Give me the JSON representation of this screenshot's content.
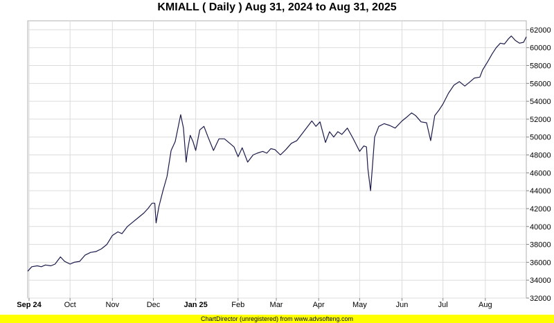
{
  "chart_data": {
    "type": "line",
    "title": "KMIALL ( Daily ) Aug 31, 2024 to Aug 31, 2025",
    "xlabel": "",
    "ylabel": "",
    "ylim": [
      32000,
      63000
    ],
    "y_ticks": [
      32000,
      34000,
      36000,
      38000,
      40000,
      42000,
      44000,
      46000,
      48000,
      50000,
      52000,
      54000,
      56000,
      58000,
      60000,
      62000
    ],
    "y_tick_labels": [
      "32000",
      "34000",
      "36000",
      "38000",
      "40000",
      "42000",
      "44000",
      "46000",
      "48000",
      "50000",
      "52000",
      "54000",
      "56000",
      "58000",
      "60000",
      "62000"
    ],
    "x_range": [
      "2024-08-31",
      "2025-08-31"
    ],
    "x_ticks": [
      {
        "date": "2024-09-01",
        "label": "Sep 24",
        "bold": true
      },
      {
        "date": "2024-10-01",
        "label": "Oct",
        "bold": false
      },
      {
        "date": "2024-11-01",
        "label": "Nov",
        "bold": false
      },
      {
        "date": "2024-12-01",
        "label": "Dec",
        "bold": false
      },
      {
        "date": "2025-01-01",
        "label": "Jan 25",
        "bold": true
      },
      {
        "date": "2025-02-01",
        "label": "Feb",
        "bold": false
      },
      {
        "date": "2025-03-01",
        "label": "Mar",
        "bold": false
      },
      {
        "date": "2025-04-01",
        "label": "Apr",
        "bold": false
      },
      {
        "date": "2025-05-01",
        "label": "May",
        "bold": false
      },
      {
        "date": "2025-06-01",
        "label": "Jun",
        "bold": false
      },
      {
        "date": "2025-07-01",
        "label": "Jul",
        "bold": false
      },
      {
        "date": "2025-08-01",
        "label": "Aug",
        "bold": false
      }
    ],
    "grid": true,
    "series": [
      {
        "line_color": "#1a1a4a",
        "points": [
          [
            "2024-08-31",
            35000
          ],
          [
            "2024-09-03",
            35500
          ],
          [
            "2024-09-07",
            35600
          ],
          [
            "2024-09-10",
            35500
          ],
          [
            "2024-09-13",
            35700
          ],
          [
            "2024-09-17",
            35600
          ],
          [
            "2024-09-20",
            35800
          ],
          [
            "2024-09-24",
            36600
          ],
          [
            "2024-09-27",
            36100
          ],
          [
            "2024-10-01",
            35800
          ],
          [
            "2024-10-04",
            36000
          ],
          [
            "2024-10-08",
            36100
          ],
          [
            "2024-10-12",
            36800
          ],
          [
            "2024-10-16",
            37100
          ],
          [
            "2024-10-20",
            37200
          ],
          [
            "2024-10-24",
            37500
          ],
          [
            "2024-10-28",
            38000
          ],
          [
            "2024-11-01",
            39000
          ],
          [
            "2024-11-05",
            39400
          ],
          [
            "2024-11-08",
            39200
          ],
          [
            "2024-11-12",
            40000
          ],
          [
            "2024-11-16",
            40500
          ],
          [
            "2024-11-20",
            41000
          ],
          [
            "2024-11-24",
            41500
          ],
          [
            "2024-11-27",
            42000
          ],
          [
            "2024-11-30",
            42600
          ],
          [
            "2024-12-02",
            42600
          ],
          [
            "2024-12-03",
            40400
          ],
          [
            "2024-12-05",
            42200
          ],
          [
            "2024-12-08",
            44000
          ],
          [
            "2024-12-11",
            45600
          ],
          [
            "2024-12-14",
            48500
          ],
          [
            "2024-12-17",
            49500
          ],
          [
            "2024-12-19",
            51000
          ],
          [
            "2024-12-21",
            52500
          ],
          [
            "2024-12-23",
            51000
          ],
          [
            "2024-12-25",
            47200
          ],
          [
            "2024-12-26",
            48500
          ],
          [
            "2024-12-28",
            50200
          ],
          [
            "2024-12-30",
            49500
          ],
          [
            "2025-01-01",
            48500
          ],
          [
            "2025-01-04",
            50800
          ],
          [
            "2025-01-07",
            51200
          ],
          [
            "2025-01-10",
            50000
          ],
          [
            "2025-01-14",
            48500
          ],
          [
            "2025-01-18",
            49800
          ],
          [
            "2025-01-22",
            49800
          ],
          [
            "2025-01-26",
            49300
          ],
          [
            "2025-01-29",
            48900
          ],
          [
            "2025-02-01",
            47800
          ],
          [
            "2025-02-04",
            48800
          ],
          [
            "2025-02-08",
            47200
          ],
          [
            "2025-02-12",
            48000
          ],
          [
            "2025-02-15",
            48200
          ],
          [
            "2025-02-19",
            48400
          ],
          [
            "2025-02-22",
            48200
          ],
          [
            "2025-02-25",
            48700
          ],
          [
            "2025-02-28",
            48600
          ],
          [
            "2025-03-04",
            48000
          ],
          [
            "2025-03-08",
            48600
          ],
          [
            "2025-03-12",
            49300
          ],
          [
            "2025-03-16",
            49600
          ],
          [
            "2025-03-20",
            50400
          ],
          [
            "2025-03-24",
            51200
          ],
          [
            "2025-03-27",
            51800
          ],
          [
            "2025-03-30",
            51200
          ],
          [
            "2025-04-02",
            51700
          ],
          [
            "2025-04-06",
            49400
          ],
          [
            "2025-04-09",
            50600
          ],
          [
            "2025-04-12",
            50000
          ],
          [
            "2025-04-15",
            50600
          ],
          [
            "2025-04-18",
            50300
          ],
          [
            "2025-04-22",
            51000
          ],
          [
            "2025-04-26",
            49900
          ],
          [
            "2025-04-29",
            49000
          ],
          [
            "2025-05-01",
            48400
          ],
          [
            "2025-05-04",
            49000
          ],
          [
            "2025-05-06",
            48900
          ],
          [
            "2025-05-07",
            46500
          ],
          [
            "2025-05-09",
            44000
          ],
          [
            "2025-05-10",
            46000
          ],
          [
            "2025-05-12",
            50000
          ],
          [
            "2025-05-15",
            51200
          ],
          [
            "2025-05-19",
            51500
          ],
          [
            "2025-05-23",
            51300
          ],
          [
            "2025-05-27",
            51000
          ],
          [
            "2025-06-01",
            51800
          ],
          [
            "2025-06-05",
            52300
          ],
          [
            "2025-06-08",
            52700
          ],
          [
            "2025-06-11",
            52400
          ],
          [
            "2025-06-15",
            51700
          ],
          [
            "2025-06-19",
            51600
          ],
          [
            "2025-06-22",
            49600
          ],
          [
            "2025-06-25",
            52400
          ],
          [
            "2025-06-28",
            53000
          ],
          [
            "2025-07-01",
            53700
          ],
          [
            "2025-07-05",
            54900
          ],
          [
            "2025-07-09",
            55800
          ],
          [
            "2025-07-13",
            56200
          ],
          [
            "2025-07-17",
            55700
          ],
          [
            "2025-07-21",
            56200
          ],
          [
            "2025-07-24",
            56600
          ],
          [
            "2025-07-28",
            56700
          ],
          [
            "2025-07-30",
            57500
          ],
          [
            "2025-08-03",
            58500
          ],
          [
            "2025-08-06",
            59300
          ],
          [
            "2025-08-09",
            60000
          ],
          [
            "2025-08-12",
            60500
          ],
          [
            "2025-08-15",
            60400
          ],
          [
            "2025-08-18",
            61000
          ],
          [
            "2025-08-20",
            61300
          ],
          [
            "2025-08-23",
            60800
          ],
          [
            "2025-08-26",
            60500
          ],
          [
            "2025-08-29",
            60600
          ],
          [
            "2025-08-31",
            61200
          ]
        ]
      }
    ]
  },
  "footer": {
    "text": "ChartDirector (unregistered) from www.advsofteng.com",
    "background": "#ffff00"
  }
}
